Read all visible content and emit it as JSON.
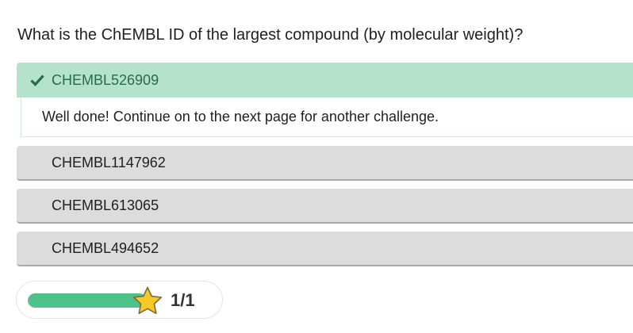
{
  "question": {
    "text": "What is the ChEMBL ID of the largest compound (by molecular weight)?"
  },
  "options": [
    {
      "label": "CHEMBL526909",
      "state": "correct",
      "icon": "check-icon"
    },
    {
      "label": "CHEMBL1147962",
      "state": "neutral"
    },
    {
      "label": "CHEMBL613065",
      "state": "neutral"
    },
    {
      "label": "CHEMBL494652",
      "state": "neutral"
    }
  ],
  "feedback": {
    "text": "Well done! Continue on to the next page for another challenge."
  },
  "progress": {
    "fraction": 1.0,
    "score_text": "1/1",
    "icon": "star-icon"
  },
  "colors": {
    "correct_bg": "#b4e2cc",
    "correct_text": "#2a6b4a",
    "neutral_bg": "#dcdcdc",
    "progress_fill": "#4fc28a",
    "star": "#f7c92b"
  }
}
